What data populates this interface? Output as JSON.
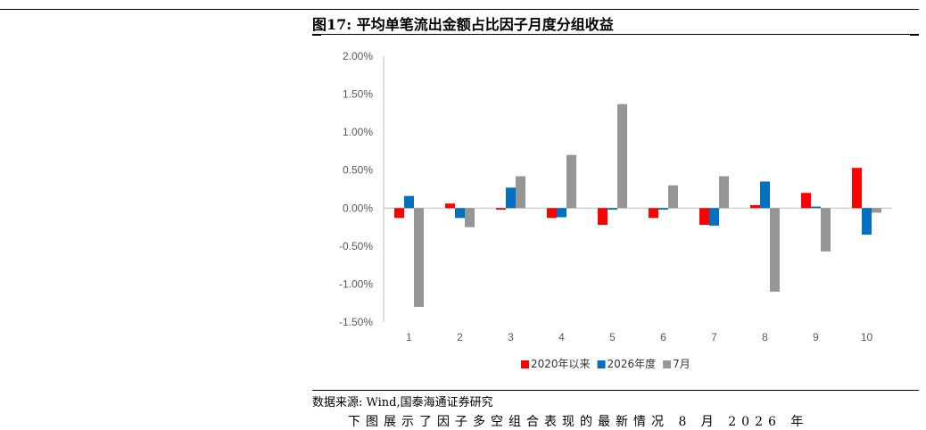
{
  "figure": {
    "title": "图17:  平均单笔流出金额占比因子月度分组收益",
    "source": "数据来源:  Wind,国泰海通证券研究",
    "trailing_text": "下图展示了因子多空组合表现的最新情况 8 月 2026 年"
  },
  "chart_data": {
    "type": "bar",
    "categories": [
      "1",
      "2",
      "3",
      "4",
      "5",
      "6",
      "7",
      "8",
      "9",
      "10"
    ],
    "series": [
      {
        "name": "2020年以来",
        "color": "#FF0000",
        "values": [
          -0.13,
          0.06,
          -0.02,
          -0.13,
          -0.22,
          -0.13,
          -0.22,
          0.04,
          0.2,
          0.53
        ]
      },
      {
        "name": "2026年度",
        "color": "#0070C0",
        "values": [
          0.16,
          -0.13,
          0.27,
          -0.12,
          -0.02,
          -0.02,
          -0.23,
          0.35,
          0.02,
          -0.35
        ]
      },
      {
        "name": "7月",
        "color": "#969696",
        "values": [
          -1.3,
          -0.25,
          0.42,
          0.7,
          1.37,
          0.3,
          0.42,
          -1.1,
          -0.57,
          -0.06
        ]
      }
    ],
    "yticks": [
      "2.00%",
      "1.50%",
      "1.00%",
      "0.50%",
      "0.00%",
      "-0.50%",
      "-1.00%",
      "-1.50%"
    ],
    "ylim": [
      -1.5,
      2.0
    ],
    "title": "",
    "xlabel": "",
    "ylabel": "",
    "legend_position": "bottom",
    "grid": false
  }
}
